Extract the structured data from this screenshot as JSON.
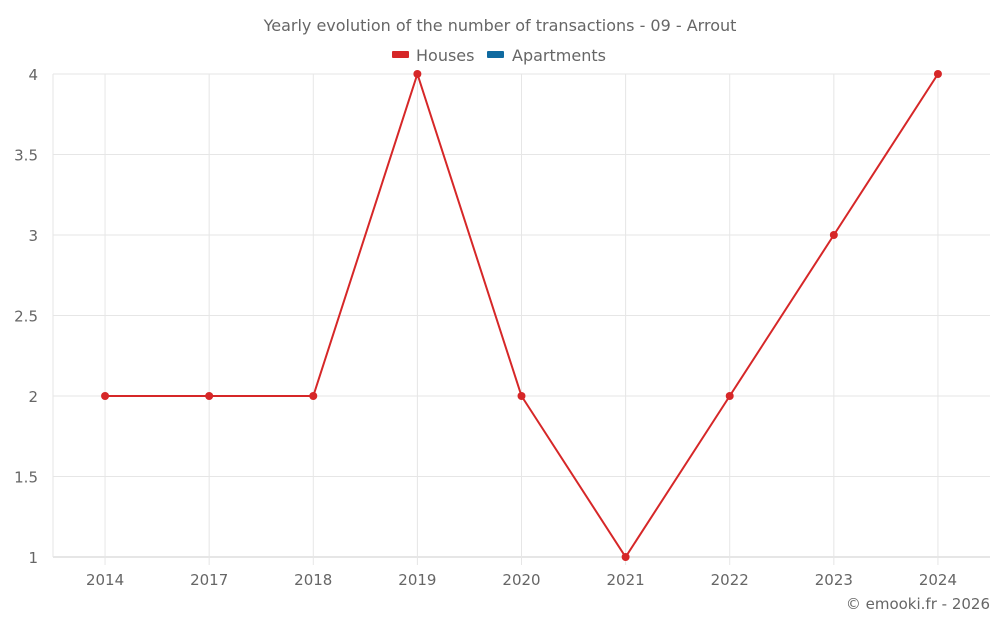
{
  "chart_data": {
    "type": "line",
    "title": "Yearly evolution of the number of transactions - 09 - Arrout",
    "xlabel": "",
    "ylabel": "",
    "categories": [
      "2014",
      "2017",
      "2018",
      "2019",
      "2020",
      "2021",
      "2022",
      "2023",
      "2024"
    ],
    "series": [
      {
        "name": "Houses",
        "color": "#d62728",
        "values": [
          2,
          2,
          2,
          4,
          2,
          1,
          2,
          3,
          4
        ]
      },
      {
        "name": "Apartments",
        "color": "#0f6aa0",
        "values": []
      }
    ],
    "ylim": [
      1,
      4
    ],
    "yticks": [
      "1",
      "1.5",
      "2",
      "2.5",
      "3",
      "3.5",
      "4"
    ],
    "grid": true,
    "legend_position": "top"
  },
  "credit": "© emooki.fr - 2026"
}
